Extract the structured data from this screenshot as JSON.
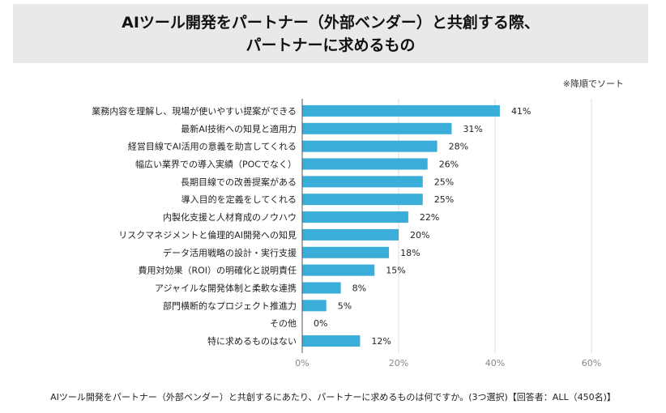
{
  "chart_data": {
    "type": "bar",
    "orientation": "horizontal",
    "title_lines": [
      "AIツール開発をパートナー（外部ベンダー）と共創する際、",
      "パートナーに求めるもの"
    ],
    "note": "※降順でソート",
    "categories": [
      "業務内容を理解し、現場が使いやすい提案ができる",
      "最新AI技術への知見と適用力",
      "経営目線でAI活用の意義を助言してくれる",
      "幅広い業界での導入実績（POCでなく）",
      "長期目線での改善提案がある",
      "導入目的を定義をしてくれる",
      "内製化支援と人材育成のノウハウ",
      "リスクマネジメントと倫理的AI開発への知見",
      "データ活用戦略の設計・実行支援",
      "費用対効果（ROI）の明確化と説明責任",
      "アジャイルな開発体制と柔軟な連携",
      "部門横断的なプロジェクト推進力",
      "その他",
      "特に求めるものはない"
    ],
    "values": [
      41,
      31,
      28,
      26,
      25,
      25,
      22,
      20,
      18,
      15,
      8,
      5,
      0,
      12
    ],
    "data_labels": [
      "41%",
      "31%",
      "28%",
      "26%",
      "25%",
      "25%",
      "22%",
      "20%",
      "18%",
      "15%",
      "8%",
      "5%",
      "0%",
      "12%"
    ],
    "xlim": [
      0,
      60
    ],
    "xticks": [
      "0%",
      "20%",
      "40%",
      "60%"
    ],
    "grid": true,
    "bar_color": "#3aaed8",
    "footer": "AIツール開発をパートナー（外部ベンダー）と共創するにあたり、パートナーに求めるものは何ですか。(3つ選択)【回答者：ALL（450名)】"
  }
}
